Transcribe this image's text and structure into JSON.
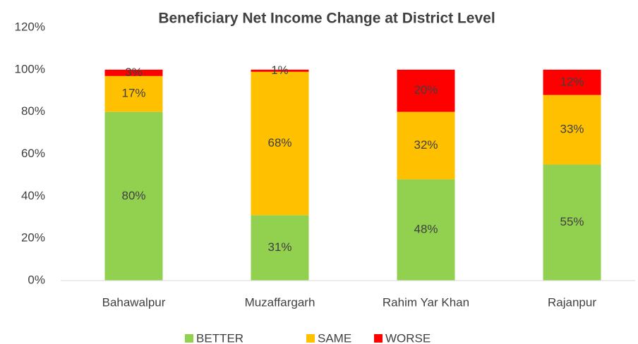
{
  "chart_data": {
    "type": "stacked_bar",
    "title": "Beneficiary Net Income Change at District Level",
    "categories": [
      "Bahawalpur",
      "Muzaffargarh",
      "Rahim Yar Khan",
      "Rajanpur"
    ],
    "series": [
      {
        "name": "BETTER",
        "color": "#92d050",
        "values": [
          80,
          31,
          48,
          55
        ],
        "value_labels": [
          "80%",
          "31%",
          "48%",
          "55%"
        ]
      },
      {
        "name": "SAME",
        "color": "#ffc000",
        "values": [
          17,
          68,
          32,
          33
        ],
        "value_labels": [
          "17%",
          "68%",
          "32%",
          "33%"
        ]
      },
      {
        "name": "WORSE",
        "color": "#ff0000",
        "values": [
          3,
          1,
          20,
          12
        ],
        "value_labels": [
          "3%",
          "1%",
          "20%",
          "12%"
        ]
      }
    ],
    "ylim": [
      0,
      120
    ],
    "yticks": [
      {
        "value": 0,
        "label": "0%"
      },
      {
        "value": 20,
        "label": "20%"
      },
      {
        "value": 40,
        "label": "40%"
      },
      {
        "value": 60,
        "label": "60%"
      },
      {
        "value": 80,
        "label": "80%"
      },
      {
        "value": 100,
        "label": "100%"
      },
      {
        "value": 120,
        "label": "120%"
      }
    ],
    "grid": false,
    "legend": "bottom"
  }
}
